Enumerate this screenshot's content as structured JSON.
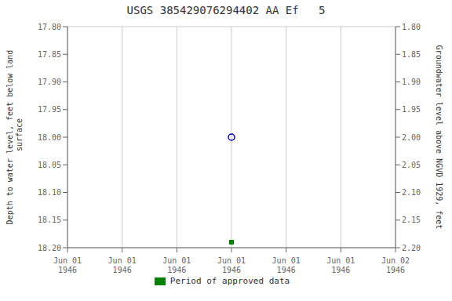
{
  "chart_data": {
    "type": "scatter",
    "title": "USGS 385429076294402 AA Ef   5",
    "y_label": "Depth to water level, feet below land\n surface",
    "y2_label": "Groundwater level above NGVD 1929, feet",
    "categories": [
      "Jun 01\n1946",
      "Jun 01\n1946",
      "Jun 01\n1946",
      "Jun 01\n1946",
      "Jun 01\n1946",
      "Jun 01\n1946",
      "Jun 02\n1946"
    ],
    "series": [
      {
        "color": "#0000cc",
        "marker": "open_circle",
        "values": [
          null,
          null,
          null,
          18.0,
          null,
          null,
          null
        ]
      },
      {
        "name": "Period of approved data",
        "color": "#008000",
        "marker": "square",
        "values": [
          null,
          null,
          null,
          18.19,
          null,
          null,
          null
        ]
      }
    ],
    "ylim": [
      18.2,
      17.8
    ],
    "yticks": [
      {
        "value": 17.8,
        "label": "17.80"
      },
      {
        "value": 17.85,
        "label": "17.85"
      },
      {
        "value": 17.9,
        "label": "17.90"
      },
      {
        "value": 17.95,
        "label": "17.95"
      },
      {
        "value": 18.0,
        "label": "18.00"
      },
      {
        "value": 18.05,
        "label": "18.05"
      },
      {
        "value": 18.1,
        "label": "18.10"
      },
      {
        "value": 18.15,
        "label": "18.15"
      },
      {
        "value": 18.2,
        "label": "18.20"
      }
    ],
    "y2lim": [
      2.2,
      1.8
    ],
    "y2ticks": [
      {
        "value": 2.2,
        "label": "2.20"
      },
      {
        "value": 2.15,
        "label": "2.15"
      },
      {
        "value": 2.1,
        "label": "2.10"
      },
      {
        "value": 2.05,
        "label": "2.05"
      },
      {
        "value": 2.0,
        "label": "2.00"
      },
      {
        "value": 1.95,
        "label": "1.95"
      },
      {
        "value": 1.9,
        "label": "1.90"
      },
      {
        "value": 1.85,
        "label": "1.85"
      },
      {
        "value": 1.8,
        "label": "1.80"
      }
    ],
    "grid": true,
    "legend": "bottom"
  }
}
